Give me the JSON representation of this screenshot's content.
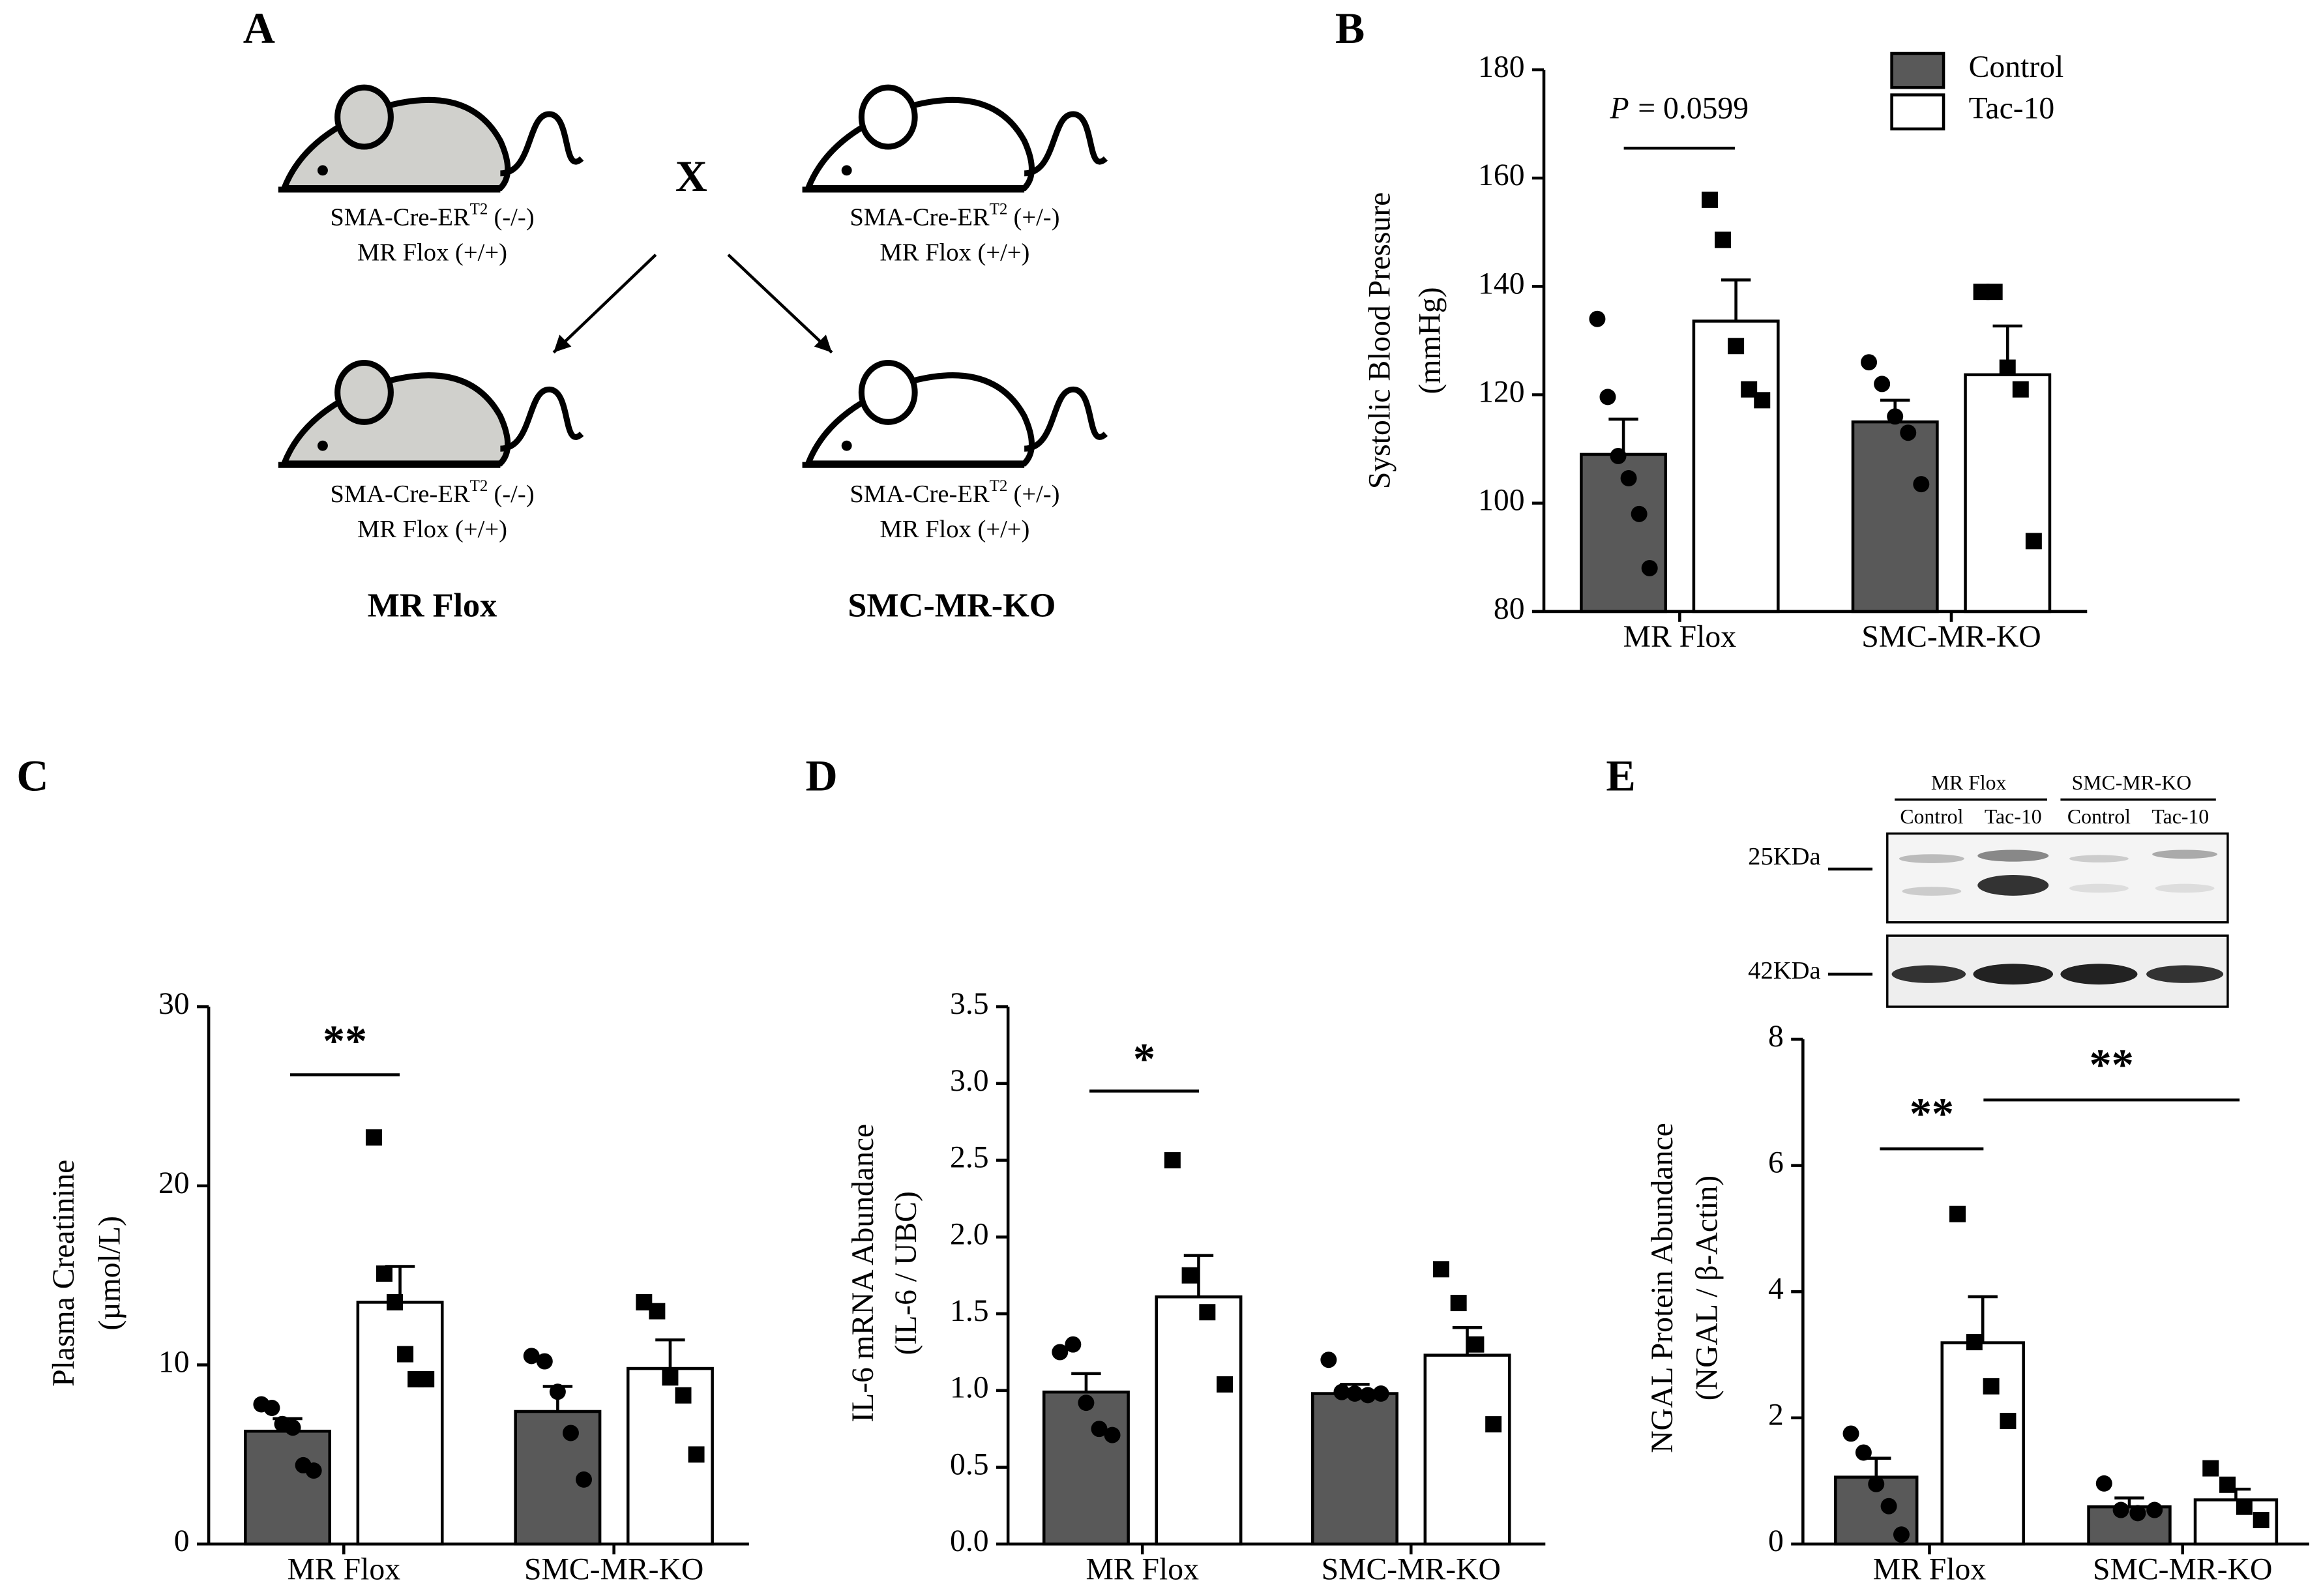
{
  "panel_a": {
    "label": "A",
    "cross": "X",
    "mice": [
      {
        "line1": {
          "text": "SMA-Cre-ER",
          "sup": "T2",
          "genotype": "(-/-)"
        },
        "line2": "MR Flox (+/+)"
      },
      {
        "line1": {
          "text": "SMA-Cre-ER",
          "sup": "T2",
          "genotype": "(+/-)"
        },
        "line2": "MR Flox (+/+)"
      },
      {
        "line1": {
          "text": "SMA-Cre-ER",
          "sup": "T2",
          "genotype": "(-/-)"
        },
        "line2": "MR Flox (+/+)"
      },
      {
        "line1": {
          "text": "SMA-Cre-ER",
          "sup": "T2",
          "genotype": "(+/-)"
        },
        "line2": "MR Flox (+/+)"
      }
    ],
    "groups": [
      "MR Flox",
      "SMC-MR-KO"
    ]
  },
  "chart_data": [
    {
      "type": "bar",
      "panel_label": "B",
      "y_label": [
        "Systolic Blood Pressure",
        "(mmHg)"
      ],
      "categories": [
        "MR Flox",
        "SMC-MR-KO"
      ],
      "series": [
        {
          "name": "Control",
          "color": "#595959",
          "marker": "circle",
          "values": [
            109,
            115
          ],
          "errors": [
            6.5,
            4
          ],
          "points": [
            [
              134,
              119.6,
              108.7,
              104.6,
              98,
              88
            ],
            [
              126,
              122,
              116,
              113,
              103.5
            ]
          ]
        },
        {
          "name": "Tac-10",
          "color": "#ffffff",
          "marker": "square",
          "values": [
            133.6,
            123.7
          ],
          "errors": [
            7.6,
            9
          ],
          "points": [
            [
              156,
              148.6,
              129,
              121,
              119
            ],
            [
              139,
              139,
              125,
              121,
              93
            ]
          ]
        }
      ],
      "ylim": [
        80,
        180
      ],
      "yticks": [
        80,
        100,
        120,
        140,
        160,
        180
      ],
      "legend": "top-right",
      "annotations": [
        {
          "italic": "P",
          "text": "= 0.0599"
        }
      ]
    },
    {
      "type": "bar",
      "panel_label": "C",
      "y_label": [
        "Plasma Creatinine",
        "(µmol/L)"
      ],
      "categories": [
        "MR Flox",
        "SMC-MR-KO"
      ],
      "series": [
        {
          "color": "#595959",
          "marker": "circle",
          "values": [
            6.3,
            7.4
          ],
          "errors": [
            0.7,
            1.4
          ],
          "points": [
            [
              7.8,
              7.6,
              6.7,
              6.5,
              4.4,
              4.1
            ],
            [
              10.5,
              10.2,
              8.5,
              6.2,
              3.6
            ]
          ]
        },
        {
          "color": "#ffffff",
          "marker": "square",
          "values": [
            13.5,
            9.8
          ],
          "errors": [
            2.0,
            1.6
          ],
          "points": [
            [
              22.7,
              15.1,
              13.5,
              10.6,
              9.2,
              9.2
            ],
            [
              13.5,
              13.0,
              9.3,
              8.3,
              5.0
            ]
          ]
        }
      ],
      "ylim": [
        0,
        30
      ],
      "yticks": [
        0,
        10,
        20,
        30
      ],
      "annotations": [
        {
          "text": "**"
        }
      ]
    },
    {
      "type": "bar",
      "panel_label": "D",
      "y_label": [
        "IL-6 mRNA Abundance",
        "(IL-6 / UBC)"
      ],
      "categories": [
        "MR Flox",
        "SMC-MR-KO"
      ],
      "series": [
        {
          "color": "#595959",
          "marker": "circle",
          "values": [
            0.99,
            0.98
          ],
          "errors": [
            0.12,
            0.06
          ],
          "points": [
            [
              1.25,
              1.3,
              0.92,
              0.75,
              0.71
            ],
            [
              1.2,
              0.99,
              0.98,
              0.97,
              0.98
            ]
          ]
        },
        {
          "color": "#ffffff",
          "marker": "square",
          "values": [
            1.61,
            1.23
          ],
          "errors": [
            0.27,
            0.18
          ],
          "points": [
            [
              2.5,
              1.75,
              1.51,
              1.04
            ],
            [
              1.79,
              1.57,
              1.3,
              0.78
            ]
          ]
        }
      ],
      "ylim": [
        0,
        3.5
      ],
      "yticks": [
        {
          "value": 0,
          "label": "0.0"
        },
        0.5,
        {
          "value": 1,
          "label": "1.0"
        },
        1.5,
        {
          "value": 2,
          "label": "2.0"
        },
        2.5,
        {
          "value": 3,
          "label": "3.0"
        },
        3.5
      ],
      "annotations": [
        {
          "text": "*"
        }
      ]
    },
    {
      "type": "bar",
      "panel_label": "E",
      "y_label": [
        "NGAL Protein Abundance",
        "(NGAL / β-Actin)"
      ],
      "categories": [
        "MR Flox",
        "SMC-MR-KO"
      ],
      "series": [
        {
          "color": "#595959",
          "marker": "circle",
          "values": [
            1.06,
            0.59
          ],
          "errors": [
            0.3,
            0.14
          ],
          "points": [
            [
              1.75,
              1.45,
              0.95,
              0.6,
              0.15
            ],
            [
              0.96,
              0.54,
              0.49,
              0.54
            ]
          ]
        },
        {
          "color": "#ffffff",
          "marker": "square",
          "values": [
            3.19,
            0.7
          ],
          "errors": [
            0.73,
            0.17
          ],
          "points": [
            [
              5.23,
              3.2,
              2.5,
              1.95
            ],
            [
              1.2,
              0.94,
              0.59,
              0.38
            ]
          ]
        }
      ],
      "ylim": [
        0,
        8
      ],
      "yticks": [
        0,
        2,
        4,
        6,
        8
      ],
      "annotations": [
        {
          "text": "**"
        },
        {
          "text": "**"
        }
      ],
      "blot": {
        "groups": [
          "MR Flox",
          "SMC-MR-KO"
        ],
        "lanes": [
          "Control",
          "Tac-10",
          "Control",
          "Tac-10"
        ],
        "markers": [
          "25KDa",
          "42KDa"
        ]
      }
    }
  ]
}
